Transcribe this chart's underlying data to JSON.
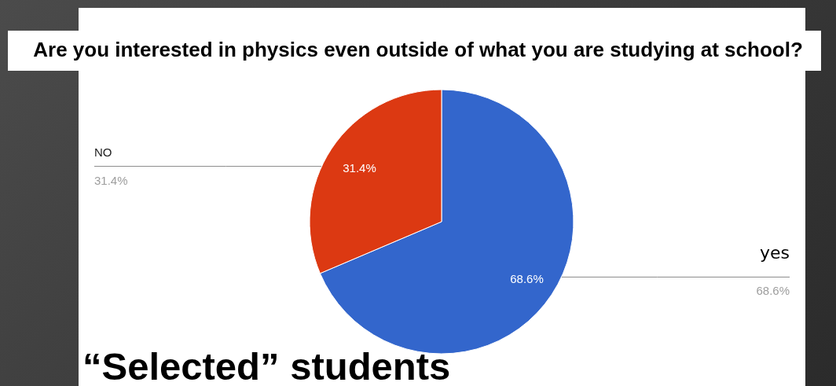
{
  "chart_data": {
    "type": "pie",
    "title": "Are you interested in physics even outside of what you are studying at school?",
    "categories": [
      "yes",
      "NO"
    ],
    "values": [
      68.6,
      31.4
    ],
    "colors": [
      "#3366cc",
      "#dc3912"
    ],
    "value_labels": [
      "68.6%",
      "31.4%"
    ],
    "annotations": [
      "“Selected” students"
    ]
  }
}
